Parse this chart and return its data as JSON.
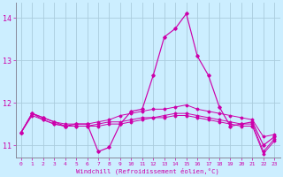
{
  "xlabel": "Windchill (Refroidissement éolien,°C)",
  "bg_color": "#cceeff",
  "grid_color": "#aaccdd",
  "line_color": "#cc00aa",
  "spine_color": "#888899",
  "x_values": [
    0,
    1,
    2,
    3,
    4,
    5,
    6,
    7,
    8,
    9,
    10,
    11,
    12,
    13,
    14,
    15,
    16,
    17,
    18,
    19,
    20,
    21,
    22,
    23
  ],
  "series": [
    [
      11.3,
      11.75,
      11.65,
      11.55,
      11.45,
      11.5,
      11.5,
      10.85,
      10.95,
      11.5,
      11.8,
      11.85,
      12.65,
      13.55,
      13.75,
      14.1,
      13.1,
      12.65,
      11.9,
      11.45,
      11.5,
      11.55,
      11.0,
      11.2
    ],
    [
      11.3,
      11.75,
      11.65,
      11.55,
      11.5,
      11.5,
      11.5,
      11.55,
      11.6,
      11.7,
      11.75,
      11.8,
      11.85,
      11.85,
      11.9,
      11.95,
      11.85,
      11.8,
      11.75,
      11.7,
      11.65,
      11.6,
      11.2,
      11.25
    ],
    [
      11.3,
      11.75,
      11.6,
      11.5,
      11.45,
      11.45,
      11.45,
      11.5,
      11.55,
      11.55,
      11.6,
      11.65,
      11.65,
      11.7,
      11.75,
      11.75,
      11.7,
      11.65,
      11.6,
      11.55,
      11.5,
      11.5,
      10.85,
      11.15
    ],
    [
      11.3,
      11.7,
      11.6,
      11.5,
      11.45,
      11.45,
      11.45,
      11.45,
      11.5,
      11.5,
      11.55,
      11.6,
      11.65,
      11.65,
      11.7,
      11.7,
      11.65,
      11.6,
      11.55,
      11.5,
      11.45,
      11.45,
      10.8,
      11.1
    ]
  ],
  "ylim": [
    10.7,
    14.35
  ],
  "xlim": [
    -0.5,
    23.5
  ],
  "yticks": [
    11,
    12,
    13,
    14
  ],
  "xticks": [
    0,
    1,
    2,
    3,
    4,
    5,
    6,
    7,
    8,
    9,
    10,
    11,
    12,
    13,
    14,
    15,
    16,
    17,
    18,
    19,
    20,
    21,
    22,
    23
  ]
}
